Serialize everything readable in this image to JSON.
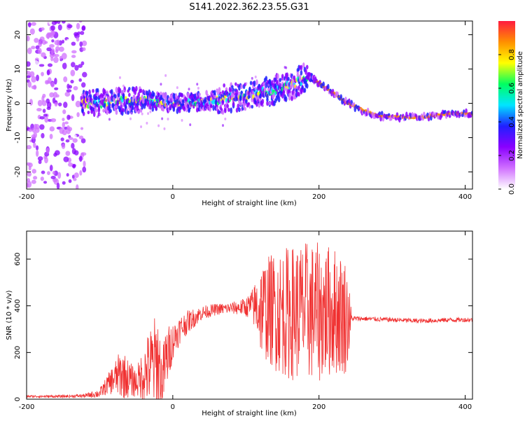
{
  "title": "S141.2022.362.23.55.G31",
  "chart_data": [
    {
      "type": "heatmap",
      "xlabel": "Height of straight line (km)",
      "ylabel": "Frequency (Hz)",
      "xlim": [
        -200,
        410
      ],
      "ylim": [
        -25,
        24
      ],
      "xticks": [
        -200,
        0,
        200,
        400
      ],
      "yticks": [
        -20,
        -10,
        0,
        10,
        20
      ],
      "colorbar": {
        "label": "Normalized spectral amplitude",
        "range": [
          0.0,
          1.0
        ],
        "ticks": [
          "0.0",
          "0.2",
          "0.4",
          "0.6",
          "0.8"
        ],
        "colors": [
          "#ffffff",
          "#d070ff",
          "#8a00ff",
          "#2020ff",
          "#00e5ff",
          "#00ff60",
          "#ffff00",
          "#ff9000",
          "#ff1a40"
        ]
      },
      "ridge": {
        "x": [
          -120,
          -80,
          -40,
          0,
          40,
          80,
          120,
          160,
          185,
          200,
          220,
          240,
          260,
          280,
          300,
          340,
          380,
          410
        ],
        "frequency": [
          0,
          0.5,
          1,
          0,
          0.5,
          1.5,
          3,
          5,
          8,
          6,
          3,
          0,
          -2,
          -3.5,
          -4,
          -4,
          -3,
          -3
        ]
      }
    },
    {
      "type": "line",
      "xlabel": "Height of straight line (km)",
      "ylabel": "SNR (10 * v/v)",
      "xlim": [
        -200,
        410
      ],
      "ylim": [
        0,
        720
      ],
      "xticks": [
        -200,
        0,
        200,
        400
      ],
      "yticks": [
        0,
        200,
        400,
        600
      ],
      "series": [
        {
          "color": "#f03030",
          "x": [
            -200,
            -150,
            -120,
            -100,
            -90,
            -80,
            -70,
            -60,
            -50,
            -40,
            -30,
            -20,
            -15,
            -10,
            0,
            10,
            20,
            40,
            60,
            80,
            100,
            110,
            120,
            140,
            160,
            180,
            200,
            220,
            235,
            240,
            245,
            260,
            300,
            340,
            380,
            410
          ],
          "center": [
            12,
            12,
            15,
            25,
            60,
            90,
            110,
            85,
            70,
            110,
            140,
            160,
            70,
            160,
            250,
            300,
            330,
            370,
            385,
            390,
            395,
            400,
            390,
            380,
            370,
            380,
            370,
            380,
            360,
            340,
            345,
            345,
            340,
            335,
            340,
            340
          ],
          "spread": [
            5,
            6,
            8,
            20,
            40,
            70,
            110,
            80,
            60,
            120,
            180,
            230,
            120,
            150,
            80,
            60,
            50,
            30,
            25,
            25,
            40,
            80,
            200,
            260,
            290,
            300,
            300,
            280,
            260,
            200,
            12,
            10,
            10,
            10,
            10,
            10
          ]
        }
      ]
    }
  ]
}
